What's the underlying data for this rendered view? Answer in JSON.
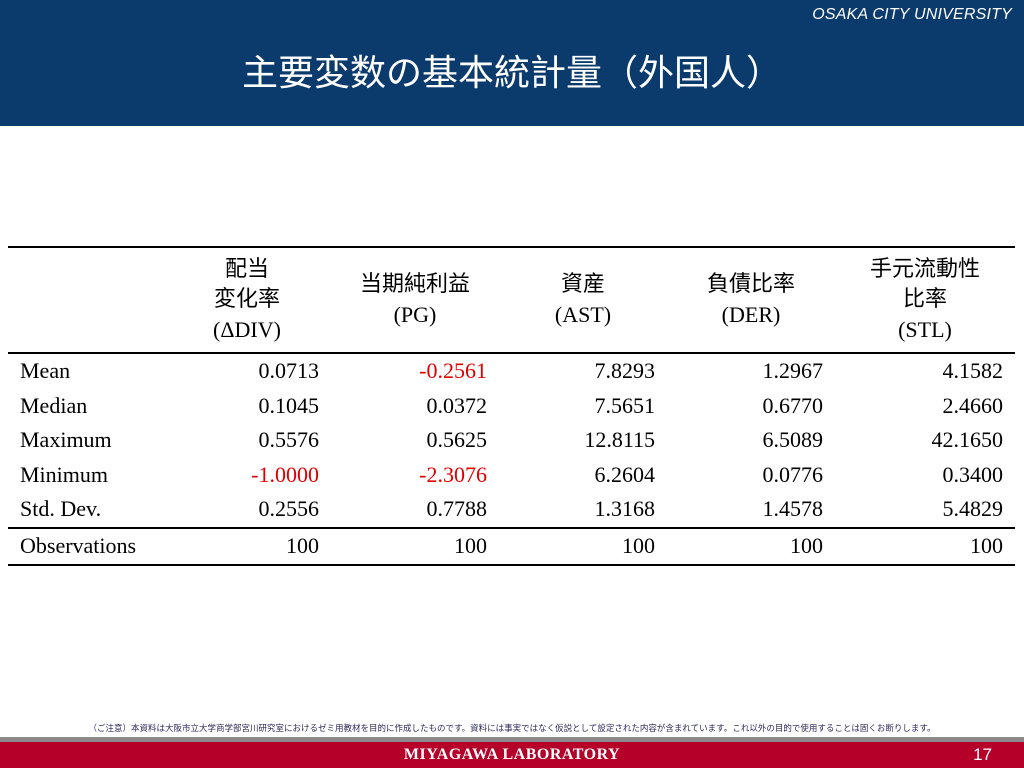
{
  "header": {
    "university": "OSAKA CITY UNIVERSITY",
    "title": "主要変数の基本統計量（外国人）",
    "background_color": "#0b3a6d"
  },
  "table": {
    "columns": [
      {
        "jp_line1": "配当",
        "jp_line2": "変化率",
        "en": "(ΔDIV)"
      },
      {
        "jp_line1": "当期純利益",
        "jp_line2": "",
        "en": "(PG)"
      },
      {
        "jp_line1": "資産",
        "jp_line2": "",
        "en": "(AST)"
      },
      {
        "jp_line1": "負債比率",
        "jp_line2": "",
        "en": "(DER)"
      },
      {
        "jp_line1": "手元流動性",
        "jp_line2": "比率",
        "en": "(STL)"
      }
    ],
    "rows": [
      {
        "label": "Mean",
        "values": [
          "0.0713",
          "-0.2561",
          "7.8293",
          "1.2967",
          "4.1582"
        ]
      },
      {
        "label": "Median",
        "values": [
          "0.1045",
          "0.0372",
          "7.5651",
          "0.6770",
          "2.4660"
        ]
      },
      {
        "label": "Maximum",
        "values": [
          "0.5576",
          "0.5625",
          "12.8115",
          "6.5089",
          "42.1650"
        ]
      },
      {
        "label": "Minimum",
        "values": [
          "-1.0000",
          "-2.3076",
          "6.2604",
          "0.0776",
          "0.3400"
        ]
      },
      {
        "label": "Std. Dev.",
        "values": [
          "0.2556",
          "0.7788",
          "1.3168",
          "1.4578",
          "5.4829"
        ]
      },
      {
        "label": "Observations",
        "values": [
          "100",
          "100",
          "100",
          "100",
          "100"
        ]
      }
    ],
    "negative_color": "#e00000"
  },
  "notice": "（ご注意）本資料は大阪市立大学商学部宮川研究室におけるゼミ用教材を目的に作成したものです。資料には事実ではなく仮説として設定された内容が含まれています。これ以外の目的で使用することは固くお断りします。",
  "footer": {
    "lab": "MIYAGAWA LABORATORY",
    "page": "17",
    "background_color": "#b5002a"
  }
}
